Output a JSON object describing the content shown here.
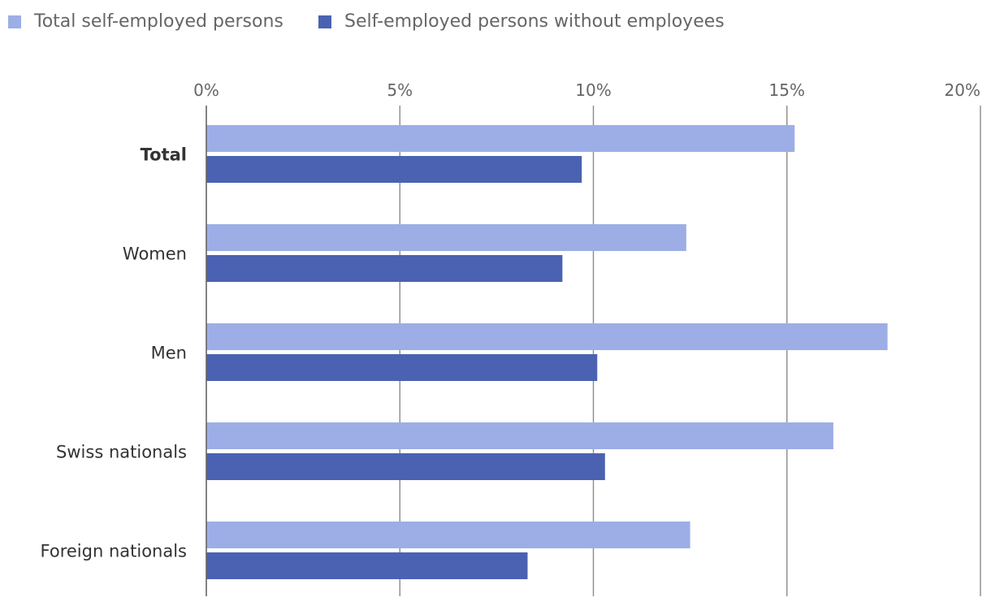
{
  "chart_data": {
    "type": "bar",
    "orientation": "horizontal",
    "title": "",
    "xlabel": "",
    "ylabel": "",
    "categories": [
      "Total",
      "Women",
      "Men",
      "Swiss nationals",
      "Foreign nationals"
    ],
    "bold_categories": [
      "Total"
    ],
    "series": [
      {
        "name": "Total self-employed persons",
        "color": "#9daee6",
        "values": [
          15.2,
          12.4,
          17.6,
          16.2,
          12.5
        ]
      },
      {
        "name": "Self-employed persons without employees",
        "color": "#4a62b1",
        "values": [
          9.7,
          9.2,
          10.1,
          10.3,
          8.3
        ]
      }
    ],
    "xlim": [
      0,
      20
    ],
    "ticks": [
      0,
      5,
      10,
      15,
      20
    ],
    "tick_labels": [
      "0%",
      "5%",
      "10%",
      "15%",
      "20%"
    ],
    "grid": true,
    "legend_position": "top-left"
  }
}
